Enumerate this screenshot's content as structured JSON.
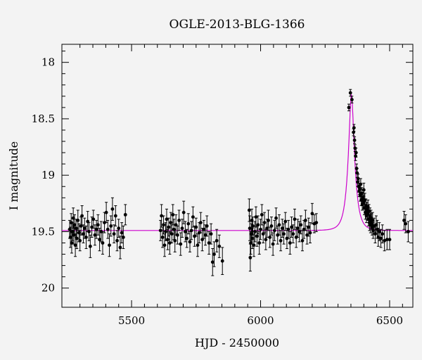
{
  "chart_data": {
    "type": "scatter",
    "title": "OGLE-2013-BLG-1366",
    "xlabel": "HJD - 2450000",
    "ylabel": "I magnitude",
    "xlim": [
      5230,
      6590
    ],
    "ylim": [
      20.17,
      17.84
    ],
    "y_inverted": true,
    "x_ticks": [
      5500,
      6000,
      6500
    ],
    "y_ticks": [
      18,
      18.5,
      19,
      19.5,
      20
    ],
    "x_tick_labels": [
      "5500",
      "6000",
      "6500"
    ],
    "y_tick_labels": [
      "18",
      "18.5",
      "19",
      "19.5",
      "20"
    ],
    "model": {
      "name": "",
      "color": "#cc00cc",
      "baseline_mag": 19.49,
      "peak_hjd": 6352,
      "peak_mag": 18.29,
      "timescale_days": 24
    },
    "series": [
      {
        "name": "",
        "color": "#000000",
        "points": [
          [
            5260,
            19.48,
            0.08
          ],
          [
            5263,
            19.55,
            0.09
          ],
          [
            5266,
            19.42,
            0.08
          ],
          [
            5268,
            19.6,
            0.09
          ],
          [
            5271,
            19.5,
            0.08
          ],
          [
            5274,
            19.38,
            0.09
          ],
          [
            5276,
            19.53,
            0.08
          ],
          [
            5279,
            19.44,
            0.09
          ],
          [
            5282,
            19.62,
            0.1
          ],
          [
            5285,
            19.47,
            0.08
          ],
          [
            5288,
            19.56,
            0.09
          ],
          [
            5292,
            19.4,
            0.09
          ],
          [
            5296,
            19.51,
            0.08
          ],
          [
            5300,
            19.58,
            0.09
          ],
          [
            5304,
            19.45,
            0.08
          ],
          [
            5308,
            19.36,
            0.09
          ],
          [
            5313,
            19.52,
            0.08
          ],
          [
            5318,
            19.47,
            0.09
          ],
          [
            5324,
            19.55,
            0.1
          ],
          [
            5330,
            19.41,
            0.09
          ],
          [
            5335,
            19.5,
            0.08
          ],
          [
            5340,
            19.63,
            0.1
          ],
          [
            5346,
            19.46,
            0.09
          ],
          [
            5352,
            19.39,
            0.08
          ],
          [
            5358,
            19.53,
            0.09
          ],
          [
            5364,
            19.48,
            0.08
          ],
          [
            5370,
            19.44,
            0.09
          ],
          [
            5376,
            19.57,
            0.1
          ],
          [
            5382,
            19.5,
            0.09
          ],
          [
            5388,
            19.6,
            0.1
          ],
          [
            5395,
            19.42,
            0.09
          ],
          [
            5402,
            19.33,
            0.09
          ],
          [
            5408,
            19.48,
            0.08
          ],
          [
            5414,
            19.62,
            0.1
          ],
          [
            5420,
            19.45,
            0.09
          ],
          [
            5426,
            19.3,
            0.1
          ],
          [
            5432,
            19.52,
            0.08
          ],
          [
            5438,
            19.36,
            0.09
          ],
          [
            5444,
            19.58,
            0.09
          ],
          [
            5450,
            19.47,
            0.08
          ],
          [
            5456,
            19.64,
            0.1
          ],
          [
            5462,
            19.51,
            0.09
          ],
          [
            5468,
            19.55,
            0.1
          ],
          [
            5476,
            19.35,
            0.09
          ],
          [
            5612,
            19.49,
            0.09
          ],
          [
            5616,
            19.36,
            0.1
          ],
          [
            5620,
            19.55,
            0.09
          ],
          [
            5624,
            19.44,
            0.08
          ],
          [
            5628,
            19.62,
            0.1
          ],
          [
            5632,
            19.5,
            0.08
          ],
          [
            5636,
            19.39,
            0.09
          ],
          [
            5640,
            19.57,
            0.09
          ],
          [
            5644,
            19.46,
            0.08
          ],
          [
            5648,
            19.6,
            0.1
          ],
          [
            5652,
            19.42,
            0.09
          ],
          [
            5656,
            19.52,
            0.08
          ],
          [
            5660,
            19.35,
            0.09
          ],
          [
            5664,
            19.48,
            0.09
          ],
          [
            5668,
            19.58,
            0.1
          ],
          [
            5672,
            19.44,
            0.09
          ],
          [
            5678,
            19.53,
            0.08
          ],
          [
            5684,
            19.4,
            0.09
          ],
          [
            5690,
            19.61,
            0.1
          ],
          [
            5696,
            19.47,
            0.08
          ],
          [
            5702,
            19.33,
            0.1
          ],
          [
            5708,
            19.5,
            0.09
          ],
          [
            5714,
            19.56,
            0.08
          ],
          [
            5720,
            19.43,
            0.09
          ],
          [
            5726,
            19.59,
            0.09
          ],
          [
            5732,
            19.49,
            0.08
          ],
          [
            5738,
            19.37,
            0.09
          ],
          [
            5744,
            19.54,
            0.09
          ],
          [
            5750,
            19.46,
            0.08
          ],
          [
            5756,
            19.62,
            0.1
          ],
          [
            5762,
            19.51,
            0.09
          ],
          [
            5768,
            19.42,
            0.09
          ],
          [
            5774,
            19.57,
            0.1
          ],
          [
            5780,
            19.48,
            0.08
          ],
          [
            5786,
            19.53,
            0.09
          ],
          [
            5792,
            19.45,
            0.09
          ],
          [
            5800,
            19.6,
            0.1
          ],
          [
            5808,
            19.52,
            0.09
          ],
          [
            5814,
            19.77,
            0.12
          ],
          [
            5820,
            19.7,
            0.11
          ],
          [
            5830,
            19.58,
            0.1
          ],
          [
            5840,
            19.63,
            0.1
          ],
          [
            5852,
            19.76,
            0.12
          ],
          [
            5956,
            19.31,
            0.1
          ],
          [
            5958,
            19.47,
            0.11
          ],
          [
            5960,
            19.73,
            0.12
          ],
          [
            5962,
            19.6,
            0.1
          ],
          [
            5964,
            19.52,
            0.09
          ],
          [
            5966,
            19.4,
            0.1
          ],
          [
            5968,
            19.56,
            0.09
          ],
          [
            5970,
            19.45,
            0.08
          ],
          [
            5974,
            19.62,
            0.1
          ],
          [
            5978,
            19.5,
            0.09
          ],
          [
            5982,
            19.37,
            0.09
          ],
          [
            5986,
            19.54,
            0.09
          ],
          [
            5990,
            19.44,
            0.08
          ],
          [
            5995,
            19.6,
            0.1
          ],
          [
            6000,
            19.48,
            0.09
          ],
          [
            6005,
            19.35,
            0.09
          ],
          [
            6010,
            19.52,
            0.08
          ],
          [
            6015,
            19.42,
            0.09
          ],
          [
            6020,
            19.57,
            0.09
          ],
          [
            6025,
            19.47,
            0.08
          ],
          [
            6030,
            19.4,
            0.09
          ],
          [
            6036,
            19.55,
            0.09
          ],
          [
            6042,
            19.45,
            0.08
          ],
          [
            6048,
            19.61,
            0.1
          ],
          [
            6054,
            19.49,
            0.09
          ],
          [
            6060,
            19.38,
            0.09
          ],
          [
            6066,
            19.53,
            0.08
          ],
          [
            6072,
            19.44,
            0.09
          ],
          [
            6078,
            19.58,
            0.09
          ],
          [
            6084,
            19.47,
            0.08
          ],
          [
            6090,
            19.52,
            0.09
          ],
          [
            6096,
            19.41,
            0.08
          ],
          [
            6102,
            19.56,
            0.09
          ],
          [
            6108,
            19.48,
            0.08
          ],
          [
            6114,
            19.6,
            0.1
          ],
          [
            6120,
            19.46,
            0.09
          ],
          [
            6126,
            19.52,
            0.08
          ],
          [
            6132,
            19.39,
            0.09
          ],
          [
            6138,
            19.55,
            0.09
          ],
          [
            6144,
            19.47,
            0.08
          ],
          [
            6150,
            19.5,
            0.09
          ],
          [
            6156,
            19.44,
            0.08
          ],
          [
            6162,
            19.58,
            0.09
          ],
          [
            6168,
            19.48,
            0.08
          ],
          [
            6174,
            19.4,
            0.09
          ],
          [
            6180,
            19.53,
            0.08
          ],
          [
            6186,
            19.46,
            0.08
          ],
          [
            6192,
            19.51,
            0.09
          ],
          [
            6200,
            19.34,
            0.09
          ],
          [
            6208,
            19.43,
            0.08
          ],
          [
            6216,
            19.42,
            0.08
          ],
          [
            6342,
            18.4,
            0.03
          ],
          [
            6348,
            18.27,
            0.03
          ],
          [
            6354,
            18.33,
            0.03
          ],
          [
            6360,
            18.62,
            0.03
          ],
          [
            6362,
            18.58,
            0.03
          ],
          [
            6364,
            18.69,
            0.03
          ],
          [
            6366,
            18.76,
            0.03
          ],
          [
            6368,
            18.83,
            0.04
          ],
          [
            6370,
            18.8,
            0.04
          ],
          [
            6372,
            18.94,
            0.04
          ],
          [
            6374,
            18.98,
            0.04
          ],
          [
            6376,
            19.06,
            0.04
          ],
          [
            6378,
            19.03,
            0.04
          ],
          [
            6380,
            19.1,
            0.05
          ],
          [
            6382,
            19.14,
            0.05
          ],
          [
            6384,
            19.12,
            0.05
          ],
          [
            6386,
            19.18,
            0.05
          ],
          [
            6388,
            19.08,
            0.05
          ],
          [
            6390,
            19.22,
            0.05
          ],
          [
            6392,
            19.16,
            0.05
          ],
          [
            6394,
            19.26,
            0.05
          ],
          [
            6396,
            19.2,
            0.05
          ],
          [
            6398,
            19.24,
            0.06
          ],
          [
            6400,
            19.13,
            0.06
          ],
          [
            6402,
            19.29,
            0.06
          ],
          [
            6404,
            19.22,
            0.06
          ],
          [
            6406,
            19.33,
            0.06
          ],
          [
            6408,
            19.27,
            0.06
          ],
          [
            6410,
            19.36,
            0.06
          ],
          [
            6412,
            19.3,
            0.06
          ],
          [
            6414,
            19.34,
            0.06
          ],
          [
            6416,
            19.28,
            0.06
          ],
          [
            6418,
            19.39,
            0.06
          ],
          [
            6420,
            19.32,
            0.06
          ],
          [
            6422,
            19.42,
            0.07
          ],
          [
            6424,
            19.36,
            0.07
          ],
          [
            6426,
            19.44,
            0.07
          ],
          [
            6428,
            19.38,
            0.07
          ],
          [
            6430,
            19.41,
            0.07
          ],
          [
            6432,
            19.46,
            0.07
          ],
          [
            6434,
            19.4,
            0.07
          ],
          [
            6436,
            19.49,
            0.07
          ],
          [
            6440,
            19.45,
            0.07
          ],
          [
            6444,
            19.52,
            0.08
          ],
          [
            6448,
            19.44,
            0.08
          ],
          [
            6452,
            19.48,
            0.08
          ],
          [
            6456,
            19.55,
            0.08
          ],
          [
            6460,
            19.5,
            0.08
          ],
          [
            6466,
            19.56,
            0.08
          ],
          [
            6472,
            19.52,
            0.08
          ],
          [
            6480,
            19.58,
            0.09
          ],
          [
            6490,
            19.57,
            0.09
          ],
          [
            6500,
            19.57,
            0.09
          ],
          [
            6556,
            19.4,
            0.08
          ],
          [
            6562,
            19.43,
            0.08
          ],
          [
            6572,
            19.5,
            0.09
          ]
        ]
      }
    ]
  }
}
